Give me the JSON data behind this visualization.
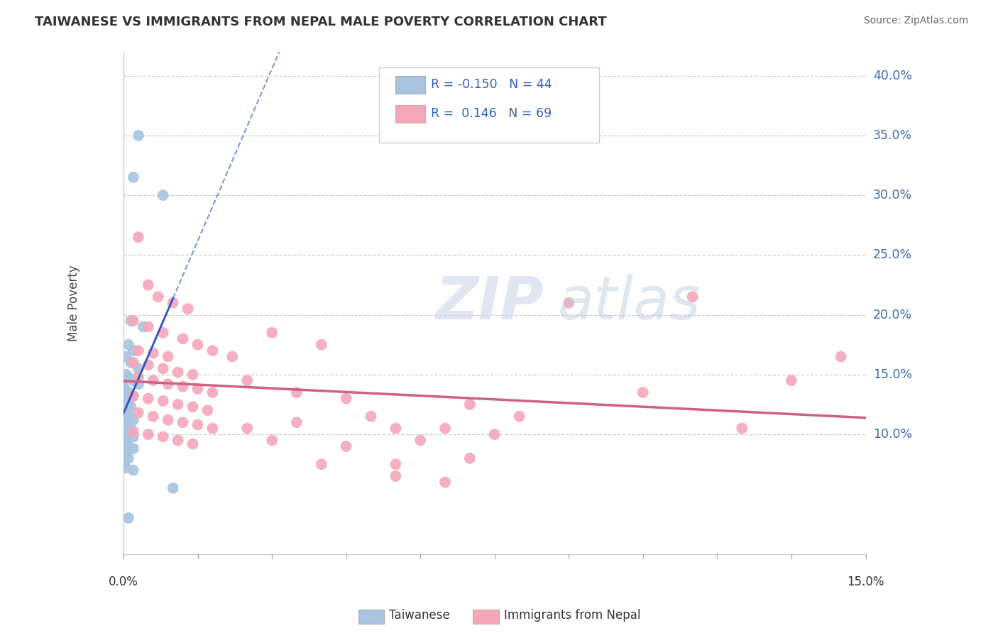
{
  "title": "TAIWANESE VS IMMIGRANTS FROM NEPAL MALE POVERTY CORRELATION CHART",
  "source": "Source: ZipAtlas.com",
  "ylabel": "Male Poverty",
  "xlim": [
    0.0,
    15.0
  ],
  "ylim": [
    0.0,
    42.0
  ],
  "yticks": [
    10.0,
    15.0,
    20.0,
    25.0,
    30.0,
    35.0,
    40.0
  ],
  "ytick_labels": [
    "10.0%",
    "15.0%",
    "20.0%",
    "25.0%",
    "30.0%",
    "35.0%",
    "40.0%"
  ],
  "blue_color": "#a8c4e0",
  "pink_color": "#f4a7b9",
  "blue_line_color": "#2a52be",
  "pink_line_color": "#d06080",
  "R_blue": -0.15,
  "N_blue": 44,
  "R_pink": 0.146,
  "N_pink": 69,
  "legend_label_blue": "Taiwanese",
  "legend_label_pink": "Immigrants from Nepal",
  "watermark_zip": "ZIP",
  "watermark_atlas": "atlas",
  "blue_scatter": [
    [
      0.3,
      35.0
    ],
    [
      0.2,
      31.5
    ],
    [
      0.8,
      30.0
    ],
    [
      0.15,
      19.5
    ],
    [
      0.4,
      19.0
    ],
    [
      0.1,
      17.5
    ],
    [
      0.2,
      17.0
    ],
    [
      0.05,
      16.5
    ],
    [
      0.15,
      16.0
    ],
    [
      0.3,
      15.5
    ],
    [
      0.05,
      15.0
    ],
    [
      0.1,
      14.8
    ],
    [
      0.2,
      14.5
    ],
    [
      0.3,
      14.2
    ],
    [
      0.0,
      14.0
    ],
    [
      0.05,
      13.7
    ],
    [
      0.1,
      13.5
    ],
    [
      0.2,
      13.2
    ],
    [
      0.0,
      13.0
    ],
    [
      0.05,
      12.7
    ],
    [
      0.1,
      12.5
    ],
    [
      0.15,
      12.3
    ],
    [
      0.0,
      12.0
    ],
    [
      0.05,
      11.8
    ],
    [
      0.1,
      11.5
    ],
    [
      0.2,
      11.2
    ],
    [
      0.0,
      11.0
    ],
    [
      0.05,
      10.8
    ],
    [
      0.15,
      10.5
    ],
    [
      0.0,
      10.3
    ],
    [
      0.1,
      10.0
    ],
    [
      0.2,
      9.8
    ],
    [
      0.0,
      9.5
    ],
    [
      0.05,
      9.2
    ],
    [
      0.1,
      9.0
    ],
    [
      0.2,
      8.8
    ],
    [
      0.0,
      8.5
    ],
    [
      0.05,
      8.2
    ],
    [
      0.1,
      8.0
    ],
    [
      0.0,
      7.5
    ],
    [
      0.05,
      7.2
    ],
    [
      0.2,
      7.0
    ],
    [
      1.0,
      5.5
    ],
    [
      0.1,
      3.0
    ]
  ],
  "pink_scatter": [
    [
      0.3,
      26.5
    ],
    [
      0.5,
      22.5
    ],
    [
      0.7,
      21.5
    ],
    [
      1.0,
      21.0
    ],
    [
      1.3,
      20.5
    ],
    [
      0.2,
      19.5
    ],
    [
      0.5,
      19.0
    ],
    [
      0.8,
      18.5
    ],
    [
      1.2,
      18.0
    ],
    [
      1.5,
      17.5
    ],
    [
      0.3,
      17.0
    ],
    [
      0.6,
      16.8
    ],
    [
      0.9,
      16.5
    ],
    [
      1.8,
      17.0
    ],
    [
      2.2,
      16.5
    ],
    [
      0.2,
      16.0
    ],
    [
      0.5,
      15.8
    ],
    [
      0.8,
      15.5
    ],
    [
      1.1,
      15.2
    ],
    [
      1.4,
      15.0
    ],
    [
      0.3,
      14.8
    ],
    [
      0.6,
      14.5
    ],
    [
      0.9,
      14.2
    ],
    [
      1.2,
      14.0
    ],
    [
      1.5,
      13.8
    ],
    [
      1.8,
      13.5
    ],
    [
      0.2,
      13.2
    ],
    [
      0.5,
      13.0
    ],
    [
      0.8,
      12.8
    ],
    [
      1.1,
      12.5
    ],
    [
      1.4,
      12.3
    ],
    [
      1.7,
      12.0
    ],
    [
      0.3,
      11.8
    ],
    [
      0.6,
      11.5
    ],
    [
      0.9,
      11.2
    ],
    [
      1.2,
      11.0
    ],
    [
      1.5,
      10.8
    ],
    [
      1.8,
      10.5
    ],
    [
      0.2,
      10.2
    ],
    [
      0.5,
      10.0
    ],
    [
      0.8,
      9.8
    ],
    [
      1.1,
      9.5
    ],
    [
      1.4,
      9.2
    ],
    [
      2.5,
      14.5
    ],
    [
      3.0,
      18.5
    ],
    [
      3.5,
      13.5
    ],
    [
      4.0,
      17.5
    ],
    [
      4.5,
      13.0
    ],
    [
      5.5,
      10.5
    ],
    [
      5.0,
      11.5
    ],
    [
      6.0,
      9.5
    ],
    [
      6.5,
      10.5
    ],
    [
      7.0,
      12.5
    ],
    [
      7.5,
      10.0
    ],
    [
      8.0,
      11.5
    ],
    [
      9.0,
      21.0
    ],
    [
      10.5,
      13.5
    ],
    [
      11.5,
      21.5
    ],
    [
      12.5,
      10.5
    ],
    [
      13.5,
      14.5
    ],
    [
      14.5,
      16.5
    ],
    [
      3.5,
      11.0
    ],
    [
      4.5,
      9.0
    ],
    [
      5.5,
      6.5
    ],
    [
      5.5,
      7.5
    ],
    [
      6.5,
      6.0
    ],
    [
      7.0,
      8.0
    ],
    [
      2.5,
      10.5
    ],
    [
      3.0,
      9.5
    ],
    [
      4.0,
      7.5
    ]
  ]
}
